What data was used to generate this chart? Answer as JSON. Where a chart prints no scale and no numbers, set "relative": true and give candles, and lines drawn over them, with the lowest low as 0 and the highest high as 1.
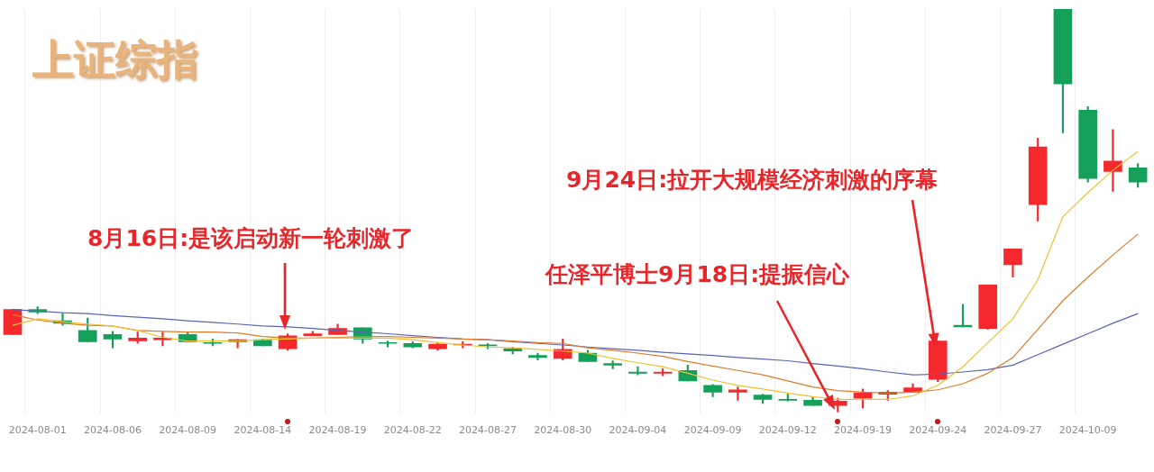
{
  "chart_data": {
    "type": "candlestick",
    "title": "上证综指",
    "relative": true,
    "grid": "x",
    "categories": [
      null,
      "2024-08-01",
      null,
      null,
      "2024-08-06",
      null,
      null,
      "2024-08-09",
      null,
      null,
      "2024-08-14",
      null,
      null,
      "2024-08-19",
      null,
      null,
      "2024-08-22",
      null,
      null,
      "2024-08-27",
      null,
      null,
      "2024-08-30",
      null,
      null,
      "2024-09-04",
      null,
      null,
      "2024-09-09",
      null,
      null,
      "2024-09-12",
      null,
      null,
      "2024-09-19",
      null,
      null,
      "2024-09-24",
      null,
      null,
      "2024-09-27",
      null,
      null,
      "2024-10-09",
      null,
      null
    ],
    "ohlc": [
      [
        0.193,
        0.255,
        0.193,
        0.255
      ],
      [
        0.255,
        0.262,
        0.245,
        0.249
      ],
      [
        0.227,
        0.245,
        0.216,
        0.221
      ],
      [
        0.203,
        0.234,
        0.175,
        0.175
      ],
      [
        0.193,
        0.201,
        0.16,
        0.182
      ],
      [
        0.177,
        0.199,
        0.171,
        0.184
      ],
      [
        0.18,
        0.199,
        0.165,
        0.184
      ],
      [
        0.193,
        0.199,
        0.175,
        0.175
      ],
      [
        0.173,
        0.182,
        0.165,
        0.171
      ],
      [
        0.175,
        0.18,
        0.16,
        0.18
      ],
      [
        0.18,
        0.182,
        0.165,
        0.165
      ],
      [
        0.158,
        0.195,
        0.154,
        0.19
      ],
      [
        0.19,
        0.201,
        0.19,
        0.195
      ],
      [
        0.193,
        0.219,
        0.193,
        0.208
      ],
      [
        0.21,
        0.21,
        0.171,
        0.182
      ],
      [
        0.173,
        0.177,
        0.162,
        0.171
      ],
      [
        0.171,
        0.175,
        0.16,
        0.162
      ],
      [
        0.158,
        0.173,
        0.154,
        0.169
      ],
      [
        0.167,
        0.175,
        0.16,
        0.169
      ],
      [
        0.167,
        0.171,
        0.158,
        0.165
      ],
      [
        0.158,
        0.162,
        0.145,
        0.152
      ],
      [
        0.141,
        0.147,
        0.13,
        0.136
      ],
      [
        0.134,
        0.182,
        0.13,
        0.156
      ],
      [
        0.147,
        0.154,
        0.126,
        0.126
      ],
      [
        0.121,
        0.128,
        0.108,
        0.117
      ],
      [
        0.1,
        0.113,
        0.093,
        0.097
      ],
      [
        0.097,
        0.108,
        0.091,
        0.1
      ],
      [
        0.104,
        0.117,
        0.078,
        0.078
      ],
      [
        0.067,
        0.069,
        0.039,
        0.05
      ],
      [
        0.05,
        0.063,
        0.03,
        0.056
      ],
      [
        0.043,
        0.045,
        0.022,
        0.032
      ],
      [
        0.032,
        0.045,
        0.028,
        0.03
      ],
      [
        0.03,
        0.039,
        0.017,
        0.017
      ],
      [
        0.017,
        0.035,
        0,
        0.028
      ],
      [
        0.035,
        0.058,
        0.011,
        0.048
      ],
      [
        0.045,
        0.054,
        0.03,
        0.05
      ],
      [
        0.05,
        0.071,
        0.05,
        0.061
      ],
      [
        0.082,
        0.177,
        0.076,
        0.177
      ],
      [
        0.216,
        0.268,
        0.212,
        0.212
      ],
      [
        0.208,
        0.316,
        0.206,
        0.316
      ],
      [
        0.366,
        0.405,
        0.335,
        0.405
      ],
      [
        0.515,
        0.68,
        0.474,
        0.658
      ],
      [
        1.0,
        1.0,
        0.693,
        0.814
      ],
      [
        0.749,
        0.758,
        0.571,
        0.58
      ],
      [
        0.597,
        0.701,
        0.548,
        0.623
      ],
      [
        0.606,
        0.617,
        0.558,
        0.571
      ]
    ],
    "colors": [
      "#f5282d",
      "#15a05a",
      "#15a05a",
      "#15a05a",
      "#15a05a",
      "#f5282d",
      "#f5282d",
      "#15a05a",
      "#15a05a",
      "#f5282d",
      "#15a05a",
      "#f5282d",
      "#f5282d",
      "#f5282d",
      "#15a05a",
      "#15a05a",
      "#15a05a",
      "#f5282d",
      "#f5282d",
      "#15a05a",
      "#15a05a",
      "#15a05a",
      "#f5282d",
      "#15a05a",
      "#15a05a",
      "#15a05a",
      "#f5282d",
      "#15a05a",
      "#15a05a",
      "#f5282d",
      "#15a05a",
      "#15a05a",
      "#15a05a",
      "#f5282d",
      "#f5282d",
      "#f5282d",
      "#f5282d",
      "#f5282d",
      "#15a05a",
      "#f5282d",
      "#f5282d",
      "#f5282d",
      "#15a05a",
      "#15a05a",
      "#f5282d",
      "#15a05a"
    ],
    "series": [
      {
        "type": "line",
        "color": "#f0c030",
        "values": [
          0.216,
          0.232,
          0.225,
          0.219,
          0.214,
          0.203,
          0.186,
          0.177,
          0.177,
          0.177,
          0.18,
          0.182,
          0.184,
          0.184,
          0.184,
          0.184,
          0.18,
          0.173,
          0.167,
          0.162,
          0.16,
          0.156,
          0.152,
          0.147,
          0.134,
          0.123,
          0.113,
          0.097,
          0.08,
          0.067,
          0.058,
          0.048,
          0.039,
          0.032,
          0.032,
          0.032,
          0.041,
          0.067,
          0.113,
          0.173,
          0.232,
          0.329,
          0.485,
          0.545,
          0.6,
          0.647
        ]
      },
      {
        "type": "line",
        "color": "#e07b2a",
        "values": [
          0.242,
          0.229,
          0.221,
          0.216,
          0.214,
          0.203,
          0.201,
          0.199,
          0.199,
          0.197,
          0.188,
          0.184,
          0.184,
          0.186,
          0.188,
          0.188,
          0.186,
          0.184,
          0.182,
          0.18,
          0.177,
          0.173,
          0.171,
          0.16,
          0.154,
          0.147,
          0.139,
          0.126,
          0.115,
          0.104,
          0.093,
          0.078,
          0.063,
          0.054,
          0.05,
          0.048,
          0.05,
          0.056,
          0.071,
          0.097,
          0.136,
          0.206,
          0.277,
          0.335,
          0.39,
          0.442
        ]
      },
      {
        "type": "line",
        "color": "#5a64b8",
        "values": [
          0.255,
          0.251,
          0.247,
          0.245,
          0.24,
          0.236,
          0.232,
          0.227,
          0.223,
          0.219,
          0.214,
          0.212,
          0.208,
          0.203,
          0.199,
          0.195,
          0.19,
          0.186,
          0.182,
          0.18,
          0.175,
          0.171,
          0.167,
          0.162,
          0.158,
          0.154,
          0.149,
          0.145,
          0.141,
          0.136,
          0.132,
          0.128,
          0.121,
          0.115,
          0.108,
          0.1,
          0.093,
          0.095,
          0.1,
          0.106,
          0.117,
          0.143,
          0.169,
          0.195,
          0.221,
          0.245
        ]
      }
    ],
    "annotations": [
      "8月16日:是该启动新一轮刺激了",
      "任泽平博士9月18日:提振信心",
      "9月24日:拉开大规模经济刺激的序幕"
    ]
  }
}
